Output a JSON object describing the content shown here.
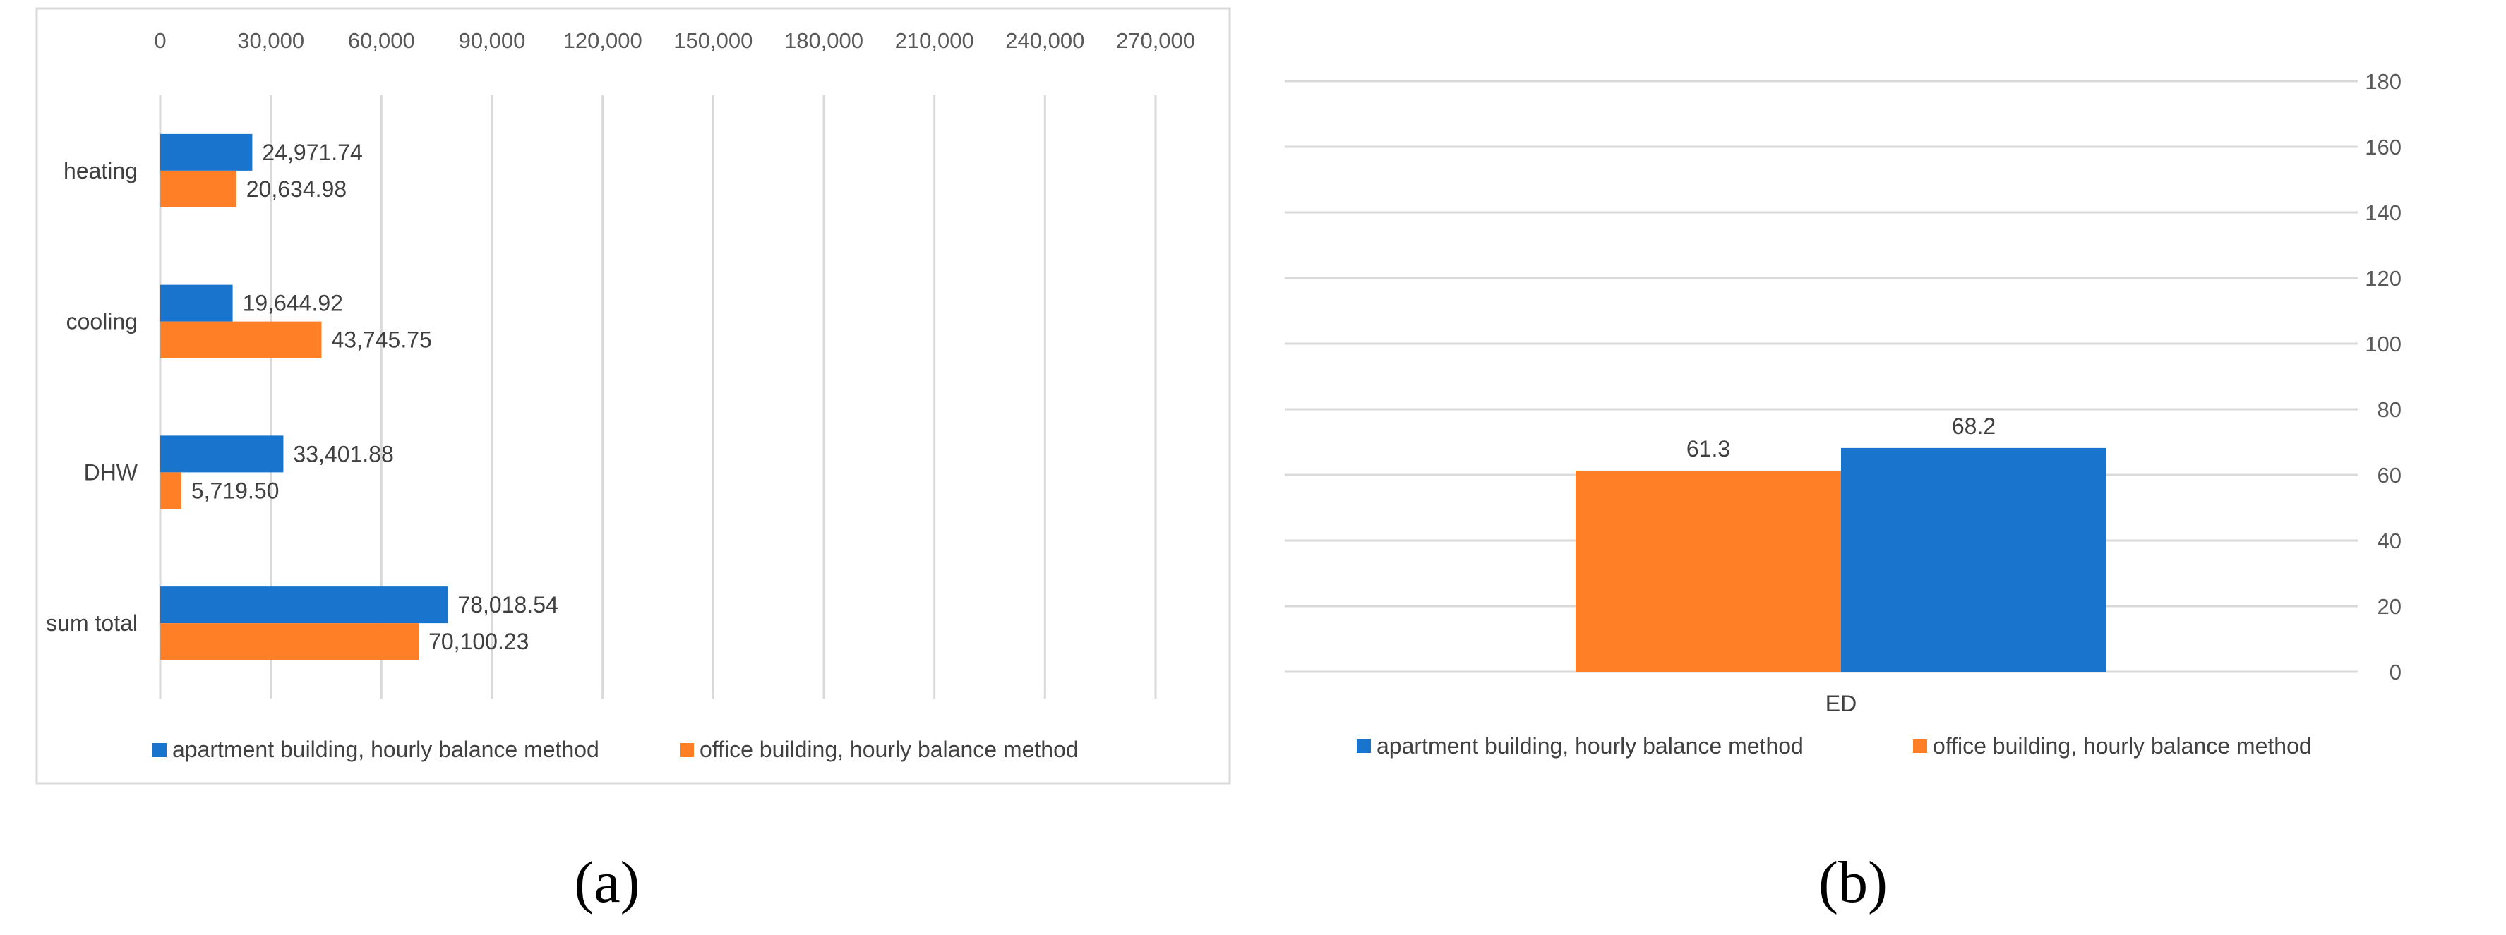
{
  "colors": {
    "apartment": "#1874cd",
    "office": "#ff7f27"
  },
  "series_names": {
    "apartment": "apartment building, hourly balance method",
    "office": "office building, hourly balance method"
  },
  "chart_data": [
    {
      "type": "bar",
      "orientation": "horizontal",
      "caption": "(a)",
      "categories": [
        "heating",
        "cooling",
        "DHW",
        "sum total"
      ],
      "series": [
        {
          "name": "apartment building, hourly balance method",
          "values": [
            24971.74,
            19644.92,
            33401.88,
            78018.54
          ],
          "labels": [
            "24,971.74",
            "19,644.92",
            "33,401.88",
            "78,018.54"
          ]
        },
        {
          "name": "office building, hourly balance method",
          "values": [
            20634.98,
            43745.75,
            5719.5,
            70100.23
          ],
          "labels": [
            "20,634.98",
            "43,745.75",
            "5,719.50",
            "70,100.23"
          ]
        }
      ],
      "xlim": [
        0,
        270000
      ],
      "xticks": [
        0,
        30000,
        60000,
        90000,
        120000,
        150000,
        180000,
        210000,
        240000,
        270000
      ],
      "xtick_labels": [
        "0",
        "30,000",
        "60,000",
        "90,000",
        "120,000",
        "150,000",
        "180,000",
        "210,000",
        "240,000",
        "270,000"
      ],
      "x_axis_position": "top",
      "grid": true,
      "legend": "bottom"
    },
    {
      "type": "bar",
      "orientation": "vertical",
      "caption": "(b)",
      "categories": [
        "ED"
      ],
      "series": [
        {
          "name": "office building, hourly balance method",
          "values": [
            61.3
          ],
          "labels": [
            "61.3"
          ]
        },
        {
          "name": "apartment building, hourly balance method",
          "values": [
            68.2
          ],
          "labels": [
            "68.2"
          ]
        }
      ],
      "legend_order": [
        "apartment building, hourly balance method",
        "office building, hourly balance method"
      ],
      "ylim": [
        0,
        180
      ],
      "yticks": [
        0,
        20,
        40,
        60,
        80,
        100,
        120,
        140,
        160,
        180
      ],
      "ytick_labels": [
        "0",
        "20",
        "40",
        "60",
        "80",
        "100",
        "120",
        "140",
        "160",
        "180"
      ],
      "y_axis_position": "right",
      "grid": true,
      "legend": "bottom"
    }
  ]
}
